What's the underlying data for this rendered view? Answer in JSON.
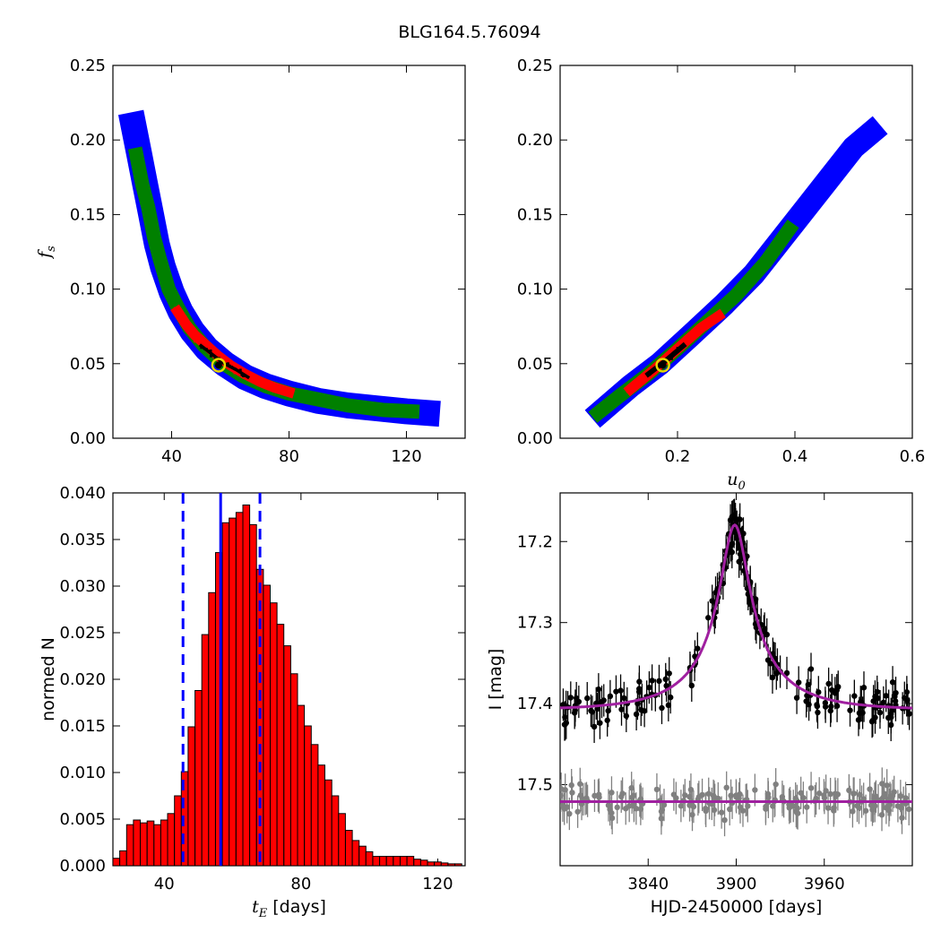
{
  "figure_title": "BLG164.5.76094",
  "colors": {
    "blue": "#0000ff",
    "green": "#008000",
    "red": "#ff0000",
    "black": "#000000",
    "yellow": "#e8d800",
    "purple": "#a020a0",
    "gray": "#808080",
    "hist_fill": "#ff0000"
  },
  "chart_data": [
    {
      "id": "tE_fs",
      "type": "scatter",
      "title": "",
      "xlabel": "",
      "ylabel": "f_s",
      "xlim": [
        20,
        140
      ],
      "ylim": [
        0.0,
        0.25
      ],
      "xticks": [
        40,
        80,
        120
      ],
      "yticks": [
        0.0,
        0.05,
        0.1,
        0.15,
        0.2,
        0.25
      ],
      "ytick_labels": [
        "0.00",
        "0.05",
        "0.10",
        "0.15",
        "0.20",
        "0.25"
      ],
      "regions": [
        {
          "name": "3sigma",
          "color": "blue",
          "width": 4.0,
          "points": [
            [
              27,
              0.21
            ],
            [
              29,
              0.19
            ],
            [
              31,
              0.17
            ],
            [
              33,
              0.15
            ],
            [
              35,
              0.13
            ],
            [
              37,
              0.115
            ],
            [
              40,
              0.098
            ],
            [
              43,
              0.085
            ],
            [
              47,
              0.072
            ],
            [
              52,
              0.06
            ],
            [
              58,
              0.05
            ],
            [
              65,
              0.041
            ],
            [
              72,
              0.035
            ],
            [
              80,
              0.03
            ],
            [
              90,
              0.025
            ],
            [
              100,
              0.022
            ],
            [
              110,
              0.02
            ],
            [
              120,
              0.018
            ],
            [
              127,
              0.017
            ]
          ]
        },
        {
          "name": "2sigma",
          "color": "green",
          "width": 2.2,
          "points": [
            [
              28,
              0.19
            ],
            [
              30,
              0.17
            ],
            [
              32,
              0.155
            ],
            [
              34,
              0.135
            ],
            [
              36,
              0.12
            ],
            [
              39,
              0.1
            ],
            [
              42,
              0.088
            ],
            [
              46,
              0.074
            ],
            [
              51,
              0.062
            ],
            [
              57,
              0.051
            ],
            [
              64,
              0.042
            ],
            [
              72,
              0.035
            ],
            [
              80,
              0.03
            ],
            [
              90,
              0.026
            ],
            [
              100,
              0.022
            ],
            [
              112,
              0.019
            ],
            [
              122,
              0.018
            ]
          ]
        },
        {
          "name": "1sigma",
          "color": "red",
          "width": 1.6,
          "points": [
            [
              42,
              0.085
            ],
            [
              45,
              0.076
            ],
            [
              48,
              0.069
            ],
            [
              52,
              0.062
            ],
            [
              56,
              0.055
            ],
            [
              60,
              0.049
            ],
            [
              65,
              0.043
            ],
            [
              70,
              0.038
            ],
            [
              75,
              0.034
            ],
            [
              80,
              0.031
            ]
          ]
        },
        {
          "name": "best",
          "color": "black",
          "width": 0.5,
          "points": [
            [
              50,
              0.062
            ],
            [
              54,
              0.056
            ],
            [
              58,
              0.05
            ],
            [
              62,
              0.046
            ],
            [
              66,
              0.041
            ]
          ]
        }
      ],
      "best_fit": {
        "x": 56,
        "y": 0.049
      }
    },
    {
      "id": "u0_fs",
      "type": "scatter",
      "title": "",
      "xlabel": "u_0",
      "ylabel": "",
      "xlim": [
        0.0,
        0.6
      ],
      "ylim": [
        0.0,
        0.25
      ],
      "xticks": [
        0.2,
        0.4,
        0.6
      ],
      "xtick_labels": [
        "0.2",
        "0.4",
        "0.6"
      ],
      "yticks": [
        0.0,
        0.05,
        0.1,
        0.15,
        0.2,
        0.25
      ],
      "ytick_labels": [
        "0.00",
        "0.05",
        "0.10",
        "0.15",
        "0.20",
        "0.25"
      ],
      "regions": [
        {
          "name": "3sigma",
          "color": "blue",
          "width": 0.018,
          "points": [
            [
              0.07,
              0.018
            ],
            [
              0.12,
              0.035
            ],
            [
              0.17,
              0.05
            ],
            [
              0.22,
              0.068
            ],
            [
              0.28,
              0.09
            ],
            [
              0.33,
              0.11
            ],
            [
              0.38,
              0.135
            ],
            [
              0.42,
              0.155
            ],
            [
              0.46,
              0.175
            ],
            [
              0.5,
              0.195
            ],
            [
              0.53,
              0.205
            ]
          ]
        },
        {
          "name": "2sigma",
          "color": "green",
          "width": 0.011,
          "points": [
            [
              0.065,
              0.017
            ],
            [
              0.1,
              0.028
            ],
            [
              0.15,
              0.043
            ],
            [
              0.2,
              0.06
            ],
            [
              0.25,
              0.078
            ],
            [
              0.3,
              0.096
            ],
            [
              0.35,
              0.118
            ],
            [
              0.39,
              0.14
            ]
          ]
        },
        {
          "name": "1sigma",
          "color": "red",
          "width": 0.008,
          "points": [
            [
              0.12,
              0.033
            ],
            [
              0.16,
              0.046
            ],
            [
              0.2,
              0.06
            ],
            [
              0.24,
              0.074
            ],
            [
              0.27,
              0.082
            ]
          ]
        },
        {
          "name": "best",
          "color": "black",
          "width": 0.004,
          "points": [
            [
              0.15,
              0.043
            ],
            [
              0.18,
              0.052
            ],
            [
              0.21,
              0.062
            ]
          ]
        }
      ],
      "best_fit": {
        "x": 0.175,
        "y": 0.049
      }
    },
    {
      "id": "tE_hist",
      "type": "bar",
      "title": "",
      "xlabel": "t_E [days]",
      "ylabel": "normed N",
      "xlim": [
        25,
        128
      ],
      "ylim": [
        0.0,
        0.04
      ],
      "xticks": [
        40,
        80,
        120
      ],
      "yticks": [
        0.0,
        0.005,
        0.01,
        0.015,
        0.02,
        0.025,
        0.03,
        0.035,
        0.04
      ],
      "ytick_labels": [
        "0.000",
        "0.005",
        "0.010",
        "0.015",
        "0.020",
        "0.025",
        "0.030",
        "0.035",
        "0.040"
      ],
      "bin_start": 25,
      "bin_width": 2,
      "values": [
        0.0008,
        0.0016,
        0.0044,
        0.0049,
        0.0046,
        0.0048,
        0.0044,
        0.0049,
        0.0056,
        0.0075,
        0.0101,
        0.0149,
        0.0188,
        0.0248,
        0.0293,
        0.0336,
        0.0368,
        0.0373,
        0.0379,
        0.0387,
        0.0366,
        0.0318,
        0.0301,
        0.0282,
        0.0259,
        0.0236,
        0.0206,
        0.0172,
        0.015,
        0.013,
        0.0108,
        0.0092,
        0.0075,
        0.0056,
        0.0038,
        0.0027,
        0.0021,
        0.0015,
        0.001,
        0.001,
        0.001,
        0.001,
        0.001,
        0.001,
        0.0007,
        0.0006,
        0.0004,
        0.0004,
        0.0003,
        0.0002,
        0.0002
      ],
      "vlines": [
        {
          "x": 45.5,
          "style": "dashed",
          "color": "blue"
        },
        {
          "x": 56.5,
          "style": "solid",
          "color": "blue"
        },
        {
          "x": 68,
          "style": "dashed",
          "color": "blue"
        }
      ]
    },
    {
      "id": "lightcurve",
      "type": "line",
      "title": "",
      "xlabel": "HJD-2450000 [days]",
      "ylabel": "I [mag]",
      "xlim": [
        3780,
        4020
      ],
      "ylim": [
        17.6,
        17.14
      ],
      "y_inverted": true,
      "xticks": [
        3840,
        3900,
        3960
      ],
      "yticks": [
        17.2,
        17.3,
        17.4,
        17.5
      ],
      "ytick_labels": [
        "17.2",
        "17.3",
        "17.4",
        "17.5"
      ],
      "model": {
        "t0": 3899,
        "tE": 56,
        "u0": 0.175,
        "fs": 0.049,
        "mag_base": 17.408,
        "residual_level": 17.521
      },
      "data_series": [
        {
          "name": "",
          "color": "black",
          "n_points": 210,
          "scatter": 0.025,
          "error": 0.02
        },
        {
          "name": "",
          "color": "gray",
          "n_points": 170,
          "scatter": 0.02,
          "error": 0.02,
          "center": 17.521
        }
      ]
    }
  ]
}
